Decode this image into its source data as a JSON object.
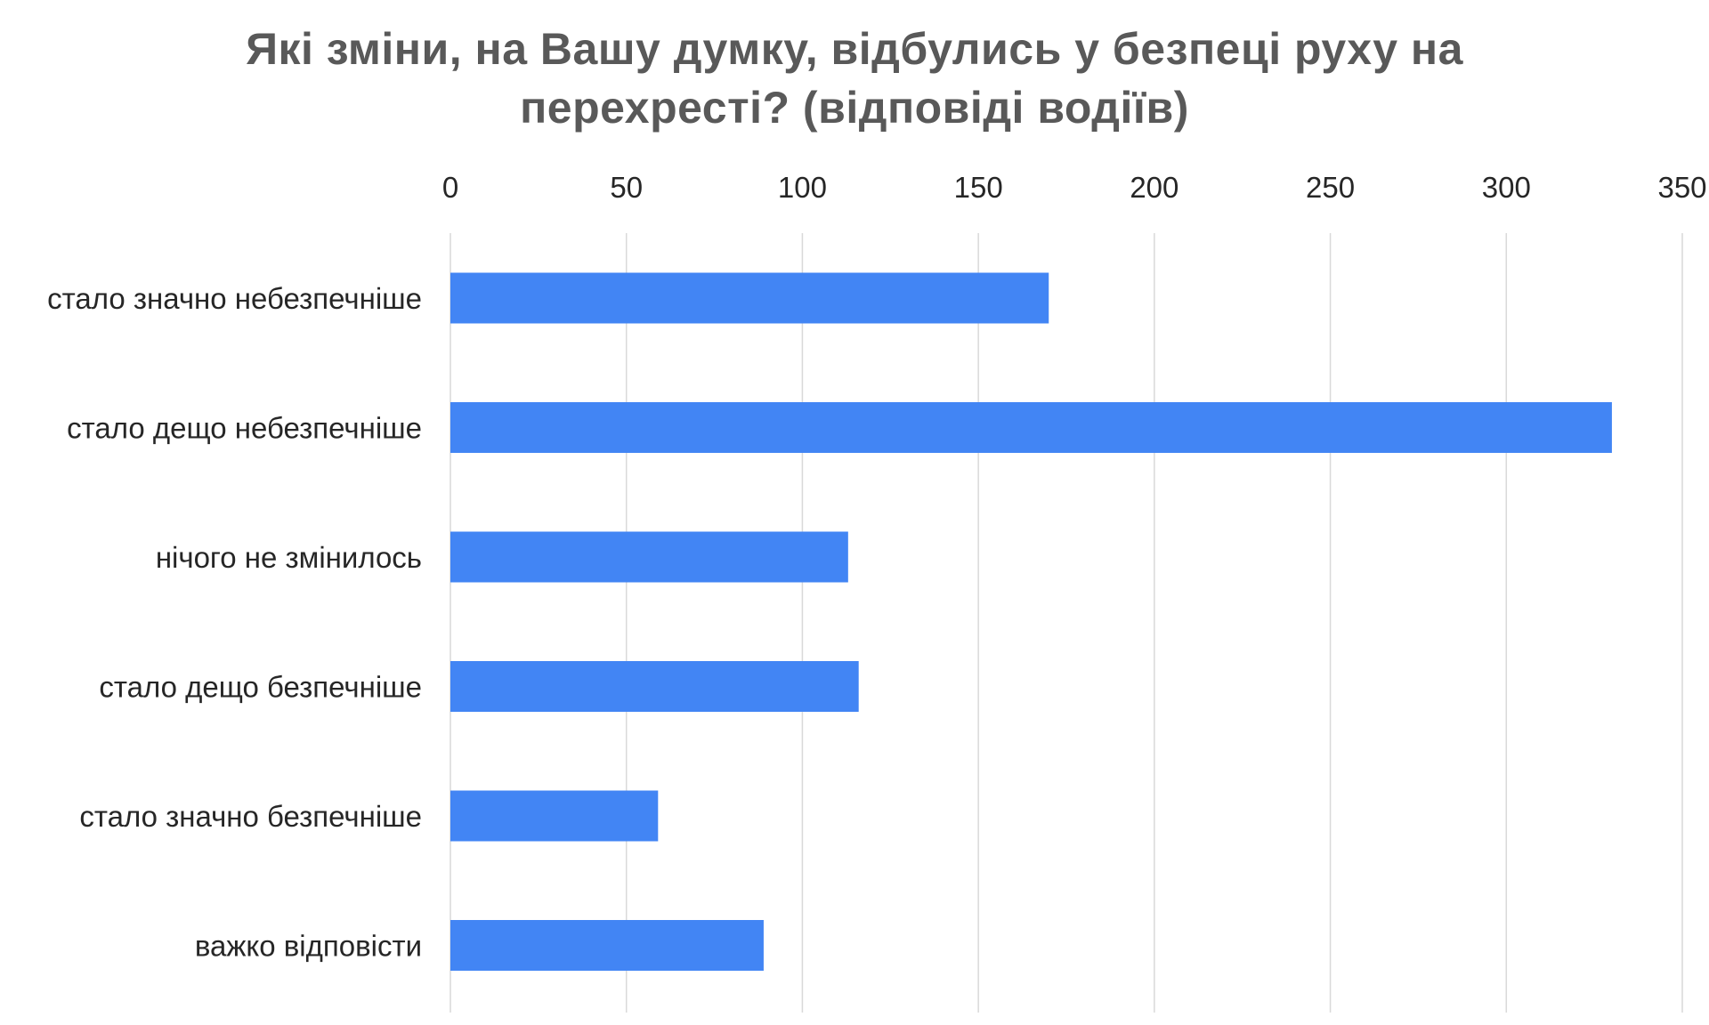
{
  "chart_data": {
    "type": "bar",
    "orientation": "horizontal",
    "title_lines": [
      "Які зміни, на Вашу думку, відбулись у безпеці руху на",
      "перехресті? (відповіді водіїв)"
    ],
    "categories": [
      "стало значно небезпечніше",
      "стало дещо небезпечніше",
      "нічого не змінилось",
      "стало дещо безпечніше",
      "стало значно безпечніше",
      "важко відповісти"
    ],
    "values": [
      170,
      330,
      113,
      116,
      59,
      89
    ],
    "xlim": [
      0,
      350
    ],
    "ticks": [
      0,
      50,
      100,
      150,
      200,
      250,
      300,
      350
    ],
    "tick_labels": [
      "0",
      "50",
      "100",
      "150",
      "200",
      "250",
      "300",
      "350"
    ],
    "axis_position": "top",
    "grid": true,
    "legend": "none",
    "bar_color": "#4285f4",
    "grid_color": "#d9d9d9",
    "title_color": "#595959",
    "label_color": "#262626"
  }
}
